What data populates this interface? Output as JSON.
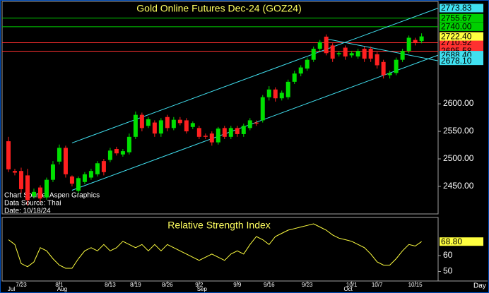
{
  "chart_data": {
    "type": "candlestick",
    "title": "Gold Online Futures Dec-24 (GOZ24)",
    "annotations": [
      "Chart Source: Aspen Graphics",
      "Data Source: Thai",
      "Date: 10/18/24"
    ],
    "x_label": "Day",
    "categories": [
      null,
      null,
      "7/23",
      null,
      null,
      null,
      null,
      null,
      "8/1",
      null,
      null,
      null,
      null,
      null,
      null,
      null,
      "8/13",
      null,
      null,
      null,
      "8/19",
      null,
      null,
      null,
      null,
      "8/26",
      null,
      null,
      null,
      null,
      "9/2",
      null,
      null,
      null,
      null,
      null,
      "9/9",
      null,
      null,
      null,
      null,
      "9/16",
      null,
      null,
      null,
      null,
      null,
      "9/23",
      null,
      null,
      null,
      null,
      null,
      null,
      "10/1",
      null,
      null,
      null,
      "10/7",
      null,
      null,
      null,
      null,
      null,
      "10/15",
      null,
      null
    ],
    "months": [
      "Jul",
      null,
      null,
      null,
      null,
      null,
      null,
      null,
      "Aug",
      null,
      null,
      null,
      null,
      null,
      null,
      null,
      null,
      null,
      null,
      null,
      null,
      null,
      null,
      null,
      null,
      null,
      null,
      null,
      null,
      null,
      "Sep",
      null,
      null,
      null,
      null,
      null,
      null,
      null,
      null,
      null,
      null,
      null,
      null,
      null,
      null,
      null,
      null,
      null,
      null,
      null,
      null,
      null,
      null,
      "Oct",
      null,
      null,
      null,
      null,
      null,
      null,
      null,
      null,
      null,
      null,
      null,
      null
    ],
    "xlim": [
      -1,
      67.6
    ],
    "open": [
      2532,
      2478,
      2478,
      2470,
      2432,
      2448,
      2430,
      2462,
      2495,
      2520,
      2468,
      2442,
      2458,
      2466,
      2472,
      2496,
      2498,
      2518,
      2508,
      2512,
      2540,
      2580,
      2560,
      2566,
      2546,
      2576,
      2556,
      2571,
      2570,
      2558,
      2556,
      2542,
      2546,
      2530,
      2556,
      2540,
      2556,
      2545,
      2556,
      2566,
      2570,
      2612,
      2626,
      2610,
      2612,
      2640,
      2655,
      2664,
      2680,
      2700,
      2722,
      2706,
      2690,
      2702,
      2688,
      2686,
      2700,
      2700,
      2690,
      2676,
      2652,
      2656,
      2680,
      2696,
      2716,
      2714
    ],
    "high": [
      2540,
      2482,
      2484,
      2482,
      2446,
      2452,
      2466,
      2496,
      2526,
      2524,
      2470,
      2468,
      2476,
      2482,
      2496,
      2500,
      2520,
      2522,
      2518,
      2546,
      2586,
      2584,
      2576,
      2570,
      2574,
      2580,
      2576,
      2576,
      2574,
      2568,
      2560,
      2546,
      2550,
      2558,
      2560,
      2560,
      2560,
      2564,
      2574,
      2570,
      2616,
      2632,
      2630,
      2624,
      2644,
      2660,
      2670,
      2684,
      2704,
      2716,
      2726,
      2710,
      2696,
      2706,
      2696,
      2700,
      2704,
      2704,
      2694,
      2680,
      2660,
      2684,
      2700,
      2724,
      2720,
      2728
    ],
    "low": [
      2476,
      2470,
      2438,
      2415,
      2428,
      2422,
      2426,
      2458,
      2490,
      2466,
      2450,
      2438,
      2454,
      2462,
      2468,
      2470,
      2494,
      2506,
      2504,
      2508,
      2536,
      2550,
      2556,
      2540,
      2540,
      2550,
      2552,
      2561,
      2546,
      2554,
      2536,
      2536,
      2524,
      2526,
      2536,
      2536,
      2540,
      2540,
      2552,
      2560,
      2566,
      2606,
      2604,
      2606,
      2608,
      2636,
      2650,
      2660,
      2676,
      2696,
      2688,
      2676,
      2686,
      2680,
      2684,
      2682,
      2676,
      2676,
      2664,
      2646,
      2646,
      2652,
      2676,
      2692,
      2706,
      2710
    ],
    "close": [
      2481,
      2475,
      2445,
      2425,
      2440,
      2428,
      2462,
      2490,
      2520,
      2472,
      2455,
      2465,
      2472,
      2478,
      2492,
      2476,
      2515,
      2510,
      2514,
      2540,
      2580,
      2556,
      2572,
      2546,
      2570,
      2556,
      2571,
      2565,
      2550,
      2565,
      2540,
      2540,
      2530,
      2555,
      2540,
      2556,
      2545,
      2560,
      2570,
      2564,
      2612,
      2626,
      2610,
      2620,
      2640,
      2655,
      2666,
      2680,
      2700,
      2712,
      2692,
      2682,
      2692,
      2686,
      2692,
      2696,
      2682,
      2682,
      2670,
      2652,
      2656,
      2680,
      2696,
      2720,
      2711,
      2722.4
    ],
    "last_price_label": "2722.40",
    "up_color": "#00e000",
    "down_color": "#ff2020",
    "ylim": [
      2400,
      2786
    ],
    "yticks": [
      {
        "value": 2450,
        "label": "2450.00"
      },
      {
        "value": 2500,
        "label": "2500.00"
      },
      {
        "value": 2550,
        "label": "2550.00"
      },
      {
        "value": 2600,
        "label": "2600.00"
      }
    ],
    "levels": {
      "values": [
        2755.67,
        {
          "value": 2740,
          "label": "2740.00"
        },
        2710.92,
        2695.58
      ],
      "colors": [
        "#00d000",
        "#00d000",
        "#ff3030",
        "#ff3030"
      ]
    },
    "trendlines": [
      {
        "x": [
          10,
          67.6
        ],
        "y": [
          2529,
          2773.83
        ],
        "color": "#40e0f0"
      },
      {
        "x": [
          10,
          67.6
        ],
        "y": [
          2443,
          {
            "value": 2688.4,
            "label": "2688.40"
          }
        ],
        "color": "#40e0f0"
      },
      {
        "x": [
          50,
          67.6
        ],
        "y": [
          2718,
          {
            "value": 2678.1,
            "label": "2678.10"
          }
        ],
        "color": "#40e0f0"
      }
    ],
    "rsi": {
      "title": "Relative Strength Index",
      "color": "#ffff40",
      "values": [
        70,
        67,
        55,
        53,
        56,
        65,
        63,
        58,
        54,
        52,
        52,
        58,
        63,
        65,
        63,
        67,
        63,
        65,
        69,
        67,
        65,
        67,
        63,
        67,
        63,
        67,
        65,
        63,
        61,
        59,
        57,
        59,
        61,
        59,
        57,
        61,
        63,
        61,
        67,
        72,
        70,
        67,
        72,
        74,
        76,
        77,
        78,
        79,
        80,
        78,
        76,
        73,
        71,
        70,
        69,
        67,
        65,
        61,
        56,
        54,
        54,
        58,
        63,
        67,
        66,
        68.8
      ],
      "last_label": "68.80",
      "ylim": [
        44,
        84
      ],
      "yticks": [
        50,
        60
      ]
    }
  }
}
